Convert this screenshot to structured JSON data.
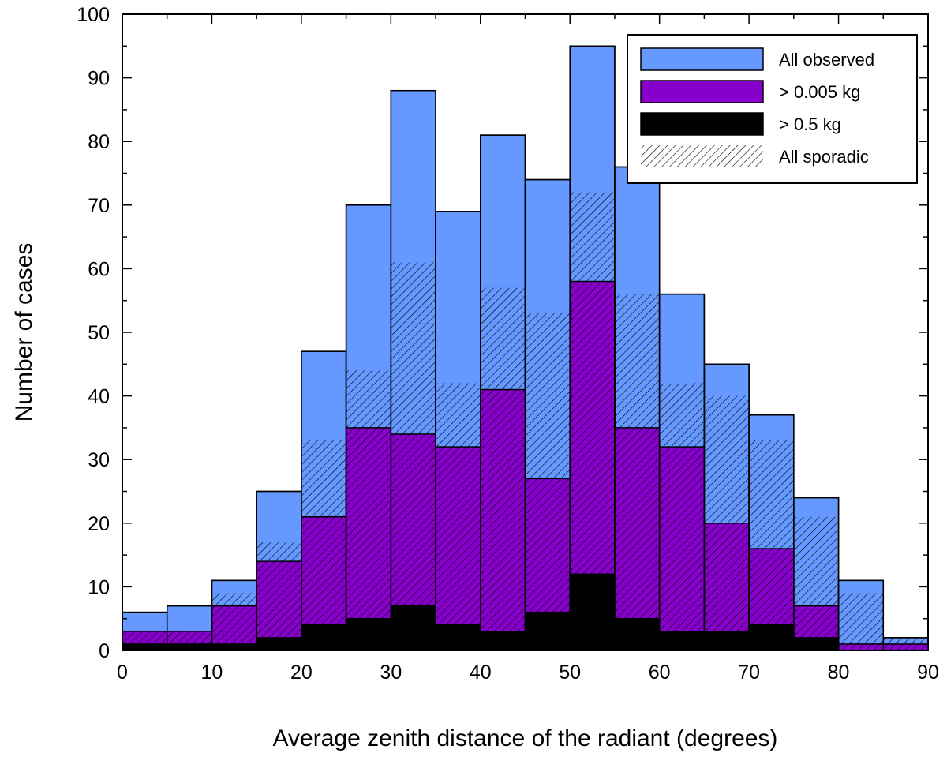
{
  "chart_data": {
    "type": "bar",
    "title": "",
    "xlabel": "Average zenith distance of the radiant (degrees)",
    "ylabel": "Number of cases",
    "xlim": [
      0,
      90
    ],
    "ylim": [
      0,
      100
    ],
    "xticks": [
      0,
      10,
      20,
      30,
      40,
      50,
      60,
      70,
      80,
      90
    ],
    "yticks": [
      0,
      10,
      20,
      30,
      40,
      50,
      60,
      70,
      80,
      90,
      100
    ],
    "bin_edges": [
      0,
      5,
      10,
      15,
      20,
      25,
      30,
      35,
      40,
      45,
      50,
      55,
      60,
      65,
      70,
      75,
      80,
      85,
      90
    ],
    "legend_position": "top-right",
    "grid": false,
    "series": [
      {
        "name": "All observed",
        "color": "#6699ff",
        "fill": "solid",
        "values": [
          6,
          7,
          11,
          25,
          47,
          70,
          88,
          69,
          81,
          74,
          95,
          76,
          56,
          45,
          37,
          24,
          11,
          2
        ]
      },
      {
        "name": "All sporadic",
        "color": "#000000",
        "fill": "hatched",
        "values": [
          3,
          3,
          9,
          17,
          33,
          44,
          61,
          42,
          57,
          53,
          72,
          56,
          42,
          40,
          33,
          21,
          9,
          2
        ]
      },
      {
        "name": "> 0.005 kg",
        "color": "#8800cc",
        "fill": "solid",
        "values": [
          3,
          3,
          7,
          14,
          21,
          35,
          34,
          32,
          41,
          27,
          58,
          35,
          32,
          20,
          16,
          7,
          1,
          1
        ]
      },
      {
        "name": "> 0.5 kg",
        "color": "#000000",
        "fill": "solid",
        "values": [
          1,
          1,
          1,
          2,
          4,
          5,
          7,
          4,
          3,
          6,
          12,
          5,
          3,
          3,
          4,
          2,
          0,
          0
        ]
      }
    ],
    "legend_order": [
      "All observed",
      "> 0.005 kg",
      "> 0.5 kg",
      "All sporadic"
    ]
  }
}
